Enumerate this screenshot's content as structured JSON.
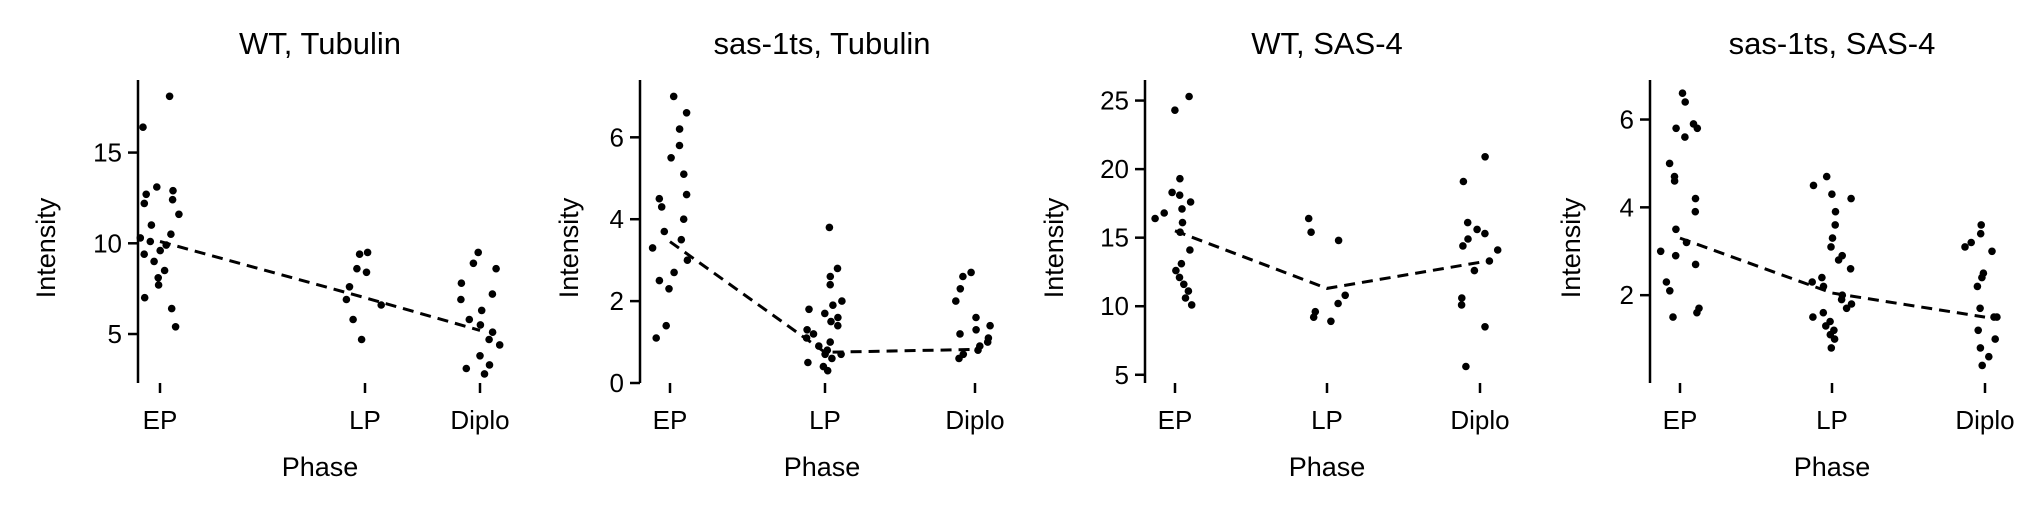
{
  "chart_data": [
    {
      "type": "scatter",
      "title": "WT, Tubulin",
      "xlabel": "Phase",
      "ylabel": "Intensity",
      "categories": [
        "EP",
        "LP",
        "Diplo"
      ],
      "yticks": [
        5,
        10,
        15
      ],
      "ylim": [
        2.3,
        19.0
      ],
      "means": [
        10.1,
        7.0,
        5.2
      ],
      "points": [
        {
          "cat": 0,
          "values": [
            18.1,
            16.4,
            13.1,
            12.9,
            12.7,
            12.4,
            12.2,
            11.6,
            11.0,
            10.5,
            10.3,
            10.1,
            9.9,
            9.6,
            9.4,
            9.0,
            8.5,
            8.1,
            7.7,
            7.0,
            6.4,
            5.4
          ]
        },
        {
          "cat": 1,
          "values": [
            9.5,
            9.4,
            8.6,
            8.4,
            7.6,
            6.9,
            6.6,
            5.8,
            4.7
          ]
        },
        {
          "cat": 2,
          "values": [
            9.5,
            8.9,
            8.6,
            7.8,
            7.2,
            6.9,
            6.3,
            5.8,
            5.5,
            5.1,
            4.7,
            4.4,
            3.8,
            3.3,
            3.1,
            2.8
          ]
        }
      ]
    },
    {
      "type": "scatter",
      "title": "sas-1ts, Tubulin",
      "xlabel": "Phase",
      "ylabel": "Intensity",
      "categories": [
        "EP",
        "LP",
        "Diplo"
      ],
      "yticks": [
        0,
        2,
        4,
        6
      ],
      "ylim": [
        0,
        7.4
      ],
      "means": [
        3.45,
        0.75,
        0.82
      ],
      "points": [
        {
          "cat": 0,
          "values": [
            7.0,
            6.6,
            6.2,
            5.8,
            5.5,
            5.1,
            4.6,
            4.5,
            4.3,
            4.0,
            3.7,
            3.5,
            3.3,
            3.0,
            2.7,
            2.5,
            2.3,
            1.4,
            1.1
          ]
        },
        {
          "cat": 1,
          "values": [
            3.8,
            2.8,
            2.6,
            2.4,
            2.0,
            1.9,
            1.8,
            1.7,
            1.6,
            1.5,
            1.4,
            1.3,
            1.2,
            1.1,
            1.0,
            0.9,
            0.8,
            0.7,
            0.7,
            0.6,
            0.5,
            0.4,
            0.3
          ]
        },
        {
          "cat": 2,
          "values": [
            2.7,
            2.6,
            2.3,
            2.0,
            1.6,
            1.4,
            1.3,
            1.2,
            1.1,
            1.0,
            0.9,
            0.8,
            0.7,
            0.6
          ]
        }
      ]
    },
    {
      "type": "scatter",
      "title": "WT, SAS-4",
      "xlabel": "Phase",
      "ylabel": "Intensity",
      "categories": [
        "EP",
        "LP",
        "Diplo"
      ],
      "yticks": [
        5,
        10,
        15,
        20,
        25
      ],
      "ylim": [
        4.4,
        26.5
      ],
      "means": [
        15.5,
        11.3,
        13.2
      ],
      "points": [
        {
          "cat": 0,
          "values": [
            25.3,
            24.3,
            19.3,
            18.3,
            18.1,
            17.6,
            17.1,
            16.8,
            16.4,
            16.1,
            15.4,
            14.1,
            13.1,
            12.6,
            12.1,
            11.6,
            11.1,
            10.6,
            10.1
          ]
        },
        {
          "cat": 1,
          "values": [
            16.4,
            15.4,
            14.8,
            10.8,
            10.2,
            9.6,
            9.2,
            8.9
          ]
        },
        {
          "cat": 2,
          "values": [
            20.9,
            19.1,
            16.1,
            15.6,
            15.3,
            14.9,
            14.4,
            14.1,
            13.3,
            12.6,
            10.6,
            10.1,
            8.5,
            5.6
          ]
        }
      ]
    },
    {
      "type": "scatter",
      "title": "sas-1ts, SAS-4",
      "xlabel": "Phase",
      "ylabel": "Intensity",
      "categories": [
        "EP",
        "LP",
        "Diplo"
      ],
      "yticks": [
        2,
        4,
        6
      ],
      "ylim": [
        0,
        6.9
      ],
      "means": [
        3.3,
        2.05,
        1.5
      ],
      "points": [
        {
          "cat": 0,
          "values": [
            6.6,
            6.4,
            5.9,
            5.8,
            5.8,
            5.6,
            5.0,
            4.7,
            4.6,
            4.2,
            3.9,
            3.5,
            3.2,
            3.0,
            2.9,
            2.7,
            2.3,
            2.1,
            1.7,
            1.6,
            1.5
          ]
        },
        {
          "cat": 1,
          "values": [
            4.7,
            4.5,
            4.3,
            4.2,
            3.9,
            3.6,
            3.3,
            3.1,
            2.9,
            2.8,
            2.6,
            2.4,
            2.3,
            2.2,
            2.0,
            1.9,
            1.8,
            1.7,
            1.6,
            1.5,
            1.4,
            1.3,
            1.2,
            1.1,
            1.0,
            0.8
          ]
        },
        {
          "cat": 2,
          "values": [
            3.6,
            3.4,
            3.2,
            3.1,
            3.0,
            2.5,
            2.4,
            2.2,
            1.7,
            1.5,
            1.5,
            1.2,
            1.0,
            0.8,
            0.6,
            0.4
          ]
        }
      ]
    }
  ]
}
